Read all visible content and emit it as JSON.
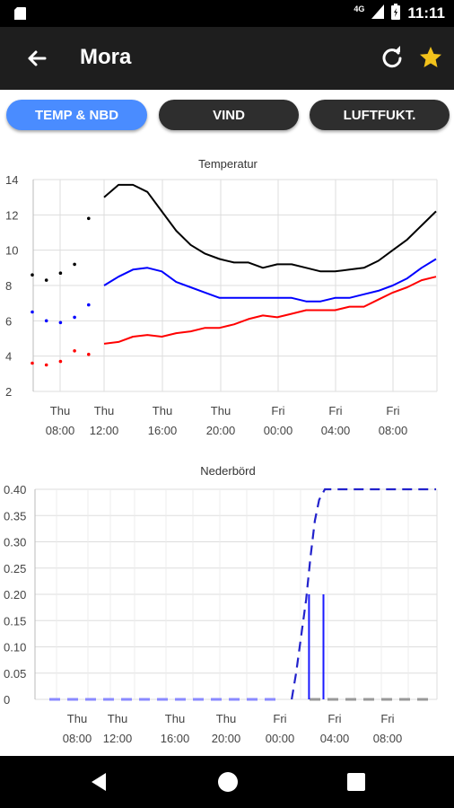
{
  "status_bar": {
    "time": "11:11",
    "network": "4G"
  },
  "toolbar": {
    "title": "Mora"
  },
  "tabs": [
    {
      "label": "TEMP & NBD",
      "active": true
    },
    {
      "label": "VIND",
      "active": false
    },
    {
      "label": "LUFTFUKT.",
      "active": false
    }
  ],
  "colors": {
    "accent": "#4a8cff",
    "toolbar": "#1e1e1e",
    "star": "#f2c21b"
  },
  "chart_data": [
    {
      "type": "line",
      "title": "Temperatur",
      "ylim": [
        2,
        14
      ],
      "yticks": [
        "14",
        "12",
        "10",
        "8",
        "6",
        "4",
        "2"
      ],
      "xticks": [
        {
          "day": "Thu",
          "time": "08:00"
        },
        {
          "day": "Thu",
          "time": "12:00"
        },
        {
          "day": "Thu",
          "time": "16:00"
        },
        {
          "day": "Thu",
          "time": "20:00"
        },
        {
          "day": "Fri",
          "time": "00:00"
        },
        {
          "day": "Fri",
          "time": "04:00"
        },
        {
          "day": "Fri",
          "time": "08:00"
        }
      ],
      "x_hours": [
        11,
        12,
        13,
        14,
        15,
        16,
        17,
        18,
        19,
        20,
        21,
        22,
        23,
        24,
        25,
        26,
        27,
        28,
        29,
        30,
        31,
        32,
        33,
        34
      ],
      "observed_hours": [
        6,
        7,
        8,
        9,
        10
      ],
      "series": [
        {
          "color": "#000000",
          "observed": [
            8.6,
            8.3,
            8.7,
            9.2,
            11.8
          ],
          "values": [
            13.0,
            13.7,
            13.7,
            13.3,
            12.2,
            11.1,
            10.3,
            9.8,
            9.5,
            9.3,
            9.3,
            9.0,
            9.2,
            9.2,
            9.0,
            8.8,
            8.8,
            8.9,
            9.0,
            9.4,
            10.0,
            10.6,
            11.4,
            12.2
          ]
        },
        {
          "color": "#0000ff",
          "observed": [
            6.5,
            6.0,
            5.9,
            6.2,
            6.9
          ],
          "values": [
            8.0,
            8.5,
            8.9,
            9.0,
            8.8,
            8.2,
            7.9,
            7.6,
            7.3,
            7.3,
            7.3,
            7.3,
            7.3,
            7.3,
            7.1,
            7.1,
            7.3,
            7.3,
            7.5,
            7.7,
            8.0,
            8.4,
            9.0,
            9.5
          ]
        },
        {
          "color": "#ff0000",
          "observed": [
            3.6,
            3.5,
            3.7,
            4.3,
            4.1
          ],
          "values": [
            4.7,
            4.8,
            5.1,
            5.2,
            5.1,
            5.3,
            5.4,
            5.6,
            5.6,
            5.8,
            6.1,
            6.3,
            6.2,
            6.4,
            6.6,
            6.6,
            6.6,
            6.8,
            6.8,
            7.2,
            7.6,
            7.9,
            8.3,
            8.5
          ]
        }
      ]
    },
    {
      "type": "bar",
      "title": "Nederbörd",
      "ylim": [
        0,
        0.4
      ],
      "yticks": [
        "0.40",
        "0.35",
        "0.30",
        "0.25",
        "0.20",
        "0.15",
        "0.10",
        "0.05",
        "0"
      ],
      "xticks": [
        {
          "day": "Thu",
          "time": "08:00"
        },
        {
          "day": "Thu",
          "time": "12:00"
        },
        {
          "day": "Thu",
          "time": "16:00"
        },
        {
          "day": "Thu",
          "time": "20:00"
        },
        {
          "day": "Fri",
          "time": "00:00"
        },
        {
          "day": "Fri",
          "time": "04:00"
        },
        {
          "day": "Fri",
          "time": "08:00"
        }
      ],
      "bars": [
        {
          "hour": 25.2,
          "value": 0.2
        },
        {
          "hour": 26.2,
          "value": 0.2
        }
      ],
      "cumulative": [
        {
          "hour": 24.0,
          "value": 0.0
        },
        {
          "hour": 24.3,
          "value": 0.05
        },
        {
          "hour": 24.7,
          "value": 0.13
        },
        {
          "hour": 25.0,
          "value": 0.19
        },
        {
          "hour": 25.3,
          "value": 0.27
        },
        {
          "hour": 25.6,
          "value": 0.34
        },
        {
          "hour": 25.9,
          "value": 0.38
        },
        {
          "hour": 26.3,
          "value": 0.4
        },
        {
          "hour": 34.0,
          "value": 0.4
        }
      ]
    }
  ]
}
